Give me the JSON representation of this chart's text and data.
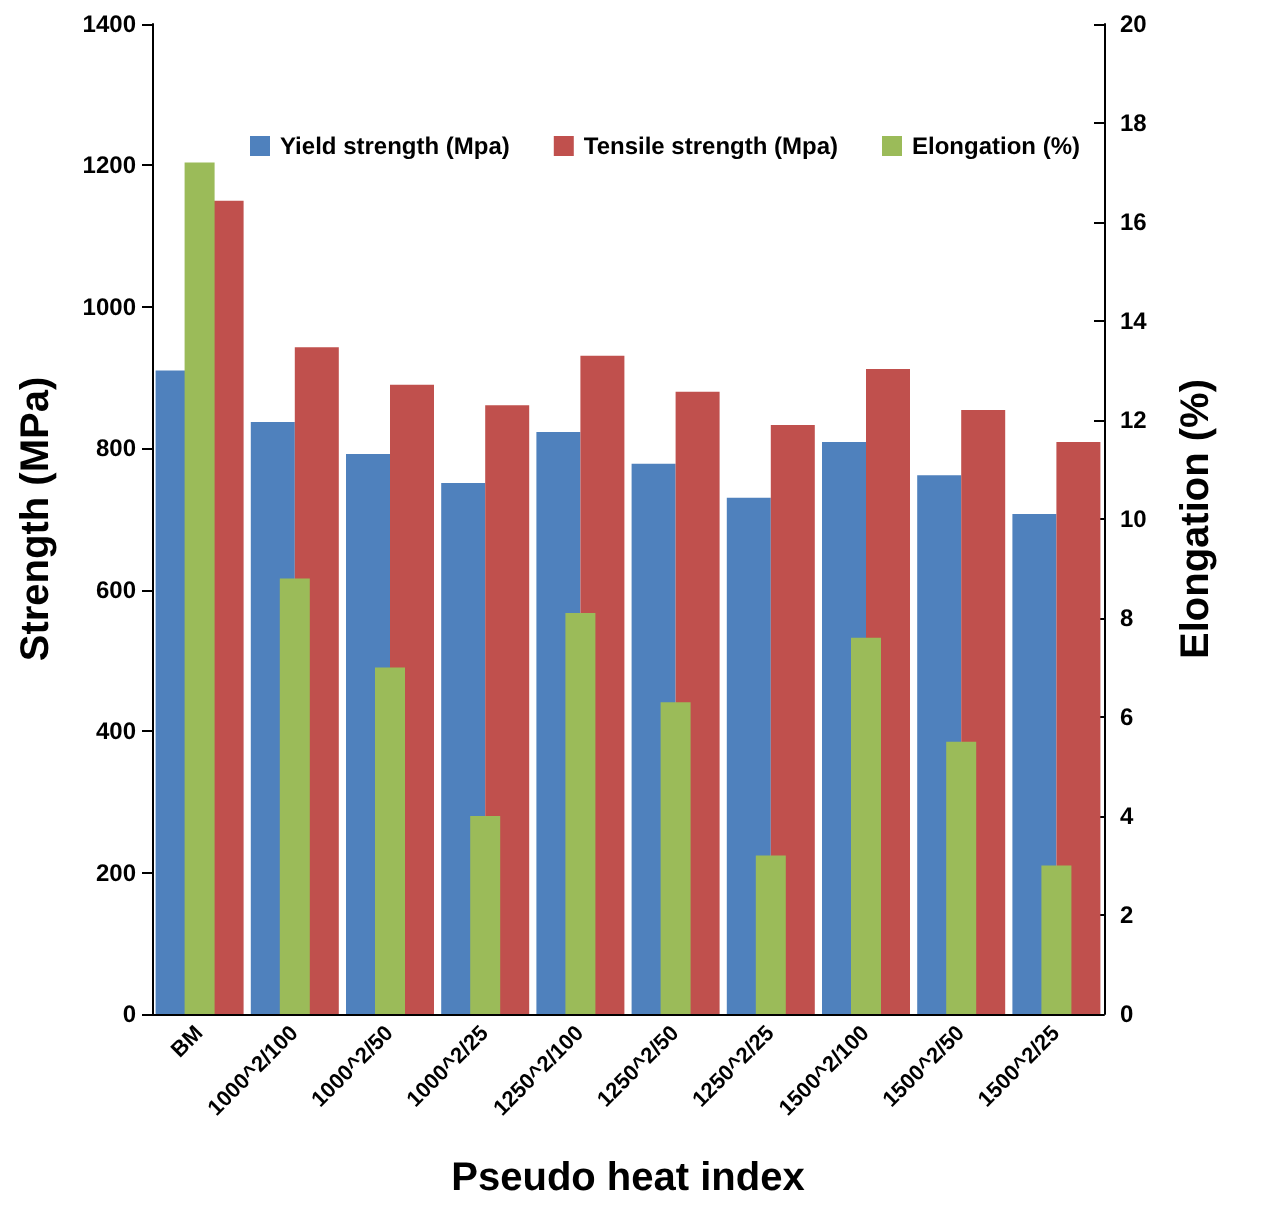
{
  "chart_data": {
    "type": "bar",
    "xlabel": "Pseudo heat index",
    "ylabel": "Strength (MPa)",
    "y2label": "Elongation (%)",
    "categories": [
      "BM",
      "1000^2/100",
      "1000^2/50",
      "1000^2/25",
      "1250^2/100",
      "1250^2/50",
      "1250^2/25",
      "1500^2/100",
      "1500^2/50",
      "1500^2/25"
    ],
    "series": [
      {
        "name": "Yield strength (Mpa)",
        "color": "#4f81bd",
        "values": [
          910,
          837,
          792,
          751,
          823,
          778,
          730,
          809,
          762,
          707
        ]
      },
      {
        "name": "Tensile strength (Mpa)",
        "color": "#c0504d",
        "values": [
          1150,
          943,
          890,
          861,
          931,
          880,
          833,
          912,
          854,
          809
        ]
      },
      {
        "name": "Elongation (%)",
        "color": "#9bbb59",
        "axis": "y2",
        "values": [
          17.2,
          8.8,
          7.0,
          4.0,
          8.1,
          6.3,
          3.2,
          7.6,
          5.5,
          3.0
        ]
      }
    ],
    "ylim": [
      0,
      1400
    ],
    "yticks": [
      0,
      200,
      400,
      600,
      800,
      1000,
      1200,
      1400
    ],
    "y2lim": [
      0,
      20
    ],
    "y2ticks": [
      0,
      2,
      4,
      6,
      8,
      10,
      12,
      14,
      16,
      18,
      20
    ],
    "grid": false,
    "legend": "top right"
  }
}
